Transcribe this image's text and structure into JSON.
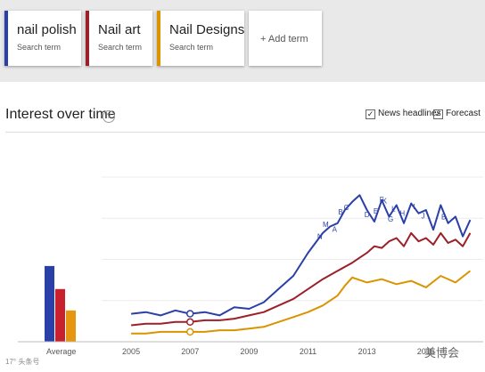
{
  "search_terms": [
    {
      "name": "nail polish",
      "sub": "Search term",
      "color": "#2a3fa8"
    },
    {
      "name": "Nail art",
      "sub": "Search term",
      "color": "#9c2029"
    },
    {
      "name": "Nail Designs",
      "sub": "Search term",
      "color": "#d99400"
    }
  ],
  "add_term": "+ Add term",
  "section": {
    "title": "Interest over time",
    "help_icon": "?"
  },
  "options": {
    "news": "News headlines",
    "forecast": "Forecast",
    "check": "✓"
  },
  "average_label": "Average",
  "watermark": {
    "left": "17° 头条号",
    "right": "美博会"
  },
  "chart_data": {
    "type": "line",
    "x_ticks": [
      "2005",
      "2007",
      "2009",
      "2011",
      "2013",
      "2015"
    ],
    "x_range": [
      2004,
      2016.7
    ],
    "y_range": [
      0,
      100
    ],
    "average": [
      {
        "name": "nail polish",
        "value": 46,
        "color": "#2a3fa8"
      },
      {
        "name": "Nail art",
        "value": 32,
        "color": "#c8202d"
      },
      {
        "name": "Nail Designs",
        "value": 19,
        "color": "#e6960e"
      }
    ],
    "news_letters": [
      "M",
      "N",
      "A",
      "B",
      "C",
      "D",
      "E",
      "F",
      "G",
      "H",
      "I",
      "J",
      "K",
      "L",
      "B"
    ],
    "series": [
      {
        "name": "nail polish",
        "color": "#2a3fa8",
        "x": [
          2005.0,
          2005.5,
          2006.0,
          2006.5,
          2007.0,
          2007.5,
          2008.0,
          2008.5,
          2009.0,
          2009.5,
          2010.0,
          2010.5,
          2011.0,
          2011.5,
          2011.75,
          2012.0,
          2012.25,
          2012.5,
          2012.75,
          2013.0,
          2013.25,
          2013.5,
          2013.75,
          2014.0,
          2014.25,
          2014.5,
          2014.75,
          2015.0,
          2015.25,
          2015.5,
          2015.75,
          2016.0,
          2016.25,
          2016.5
        ],
        "y": [
          17,
          18,
          16,
          19,
          17,
          18,
          16,
          21,
          20,
          24,
          32,
          40,
          54,
          66,
          70,
          72,
          80,
          85,
          89,
          80,
          73,
          86,
          76,
          83,
          72,
          84,
          78,
          80,
          68,
          83,
          72,
          76,
          64,
          74
        ]
      },
      {
        "name": "Nail art",
        "color": "#9c2029",
        "x": [
          2005.0,
          2005.5,
          2006.0,
          2006.5,
          2007.0,
          2007.5,
          2008.0,
          2008.5,
          2009.0,
          2009.5,
          2010.0,
          2010.5,
          2011.0,
          2011.5,
          2012.0,
          2012.5,
          2012.75,
          2013.0,
          2013.25,
          2013.5,
          2013.75,
          2014.0,
          2014.25,
          2014.5,
          2014.75,
          2015.0,
          2015.25,
          2015.5,
          2015.75,
          2016.0,
          2016.25,
          2016.5
        ],
        "y": [
          10,
          11,
          11,
          12,
          12,
          13,
          13,
          14,
          16,
          18,
          22,
          26,
          32,
          38,
          43,
          48,
          51,
          54,
          58,
          57,
          61,
          63,
          58,
          66,
          61,
          63,
          59,
          66,
          60,
          62,
          58,
          66
        ]
      },
      {
        "name": "Nail Designs",
        "color": "#d99400",
        "x": [
          2005.0,
          2005.5,
          2006.0,
          2006.5,
          2007.0,
          2007.5,
          2008.0,
          2008.5,
          2009.0,
          2009.5,
          2010.0,
          2010.5,
          2011.0,
          2011.5,
          2012.0,
          2012.25,
          2012.5,
          2013.0,
          2013.5,
          2014.0,
          2014.5,
          2015.0,
          2015.5,
          2016.0,
          2016.5
        ],
        "y": [
          5,
          5,
          6,
          6,
          6,
          6,
          7,
          7,
          8,
          9,
          12,
          15,
          18,
          22,
          28,
          34,
          39,
          36,
          38,
          35,
          37,
          33,
          40,
          36,
          43
        ]
      }
    ]
  }
}
